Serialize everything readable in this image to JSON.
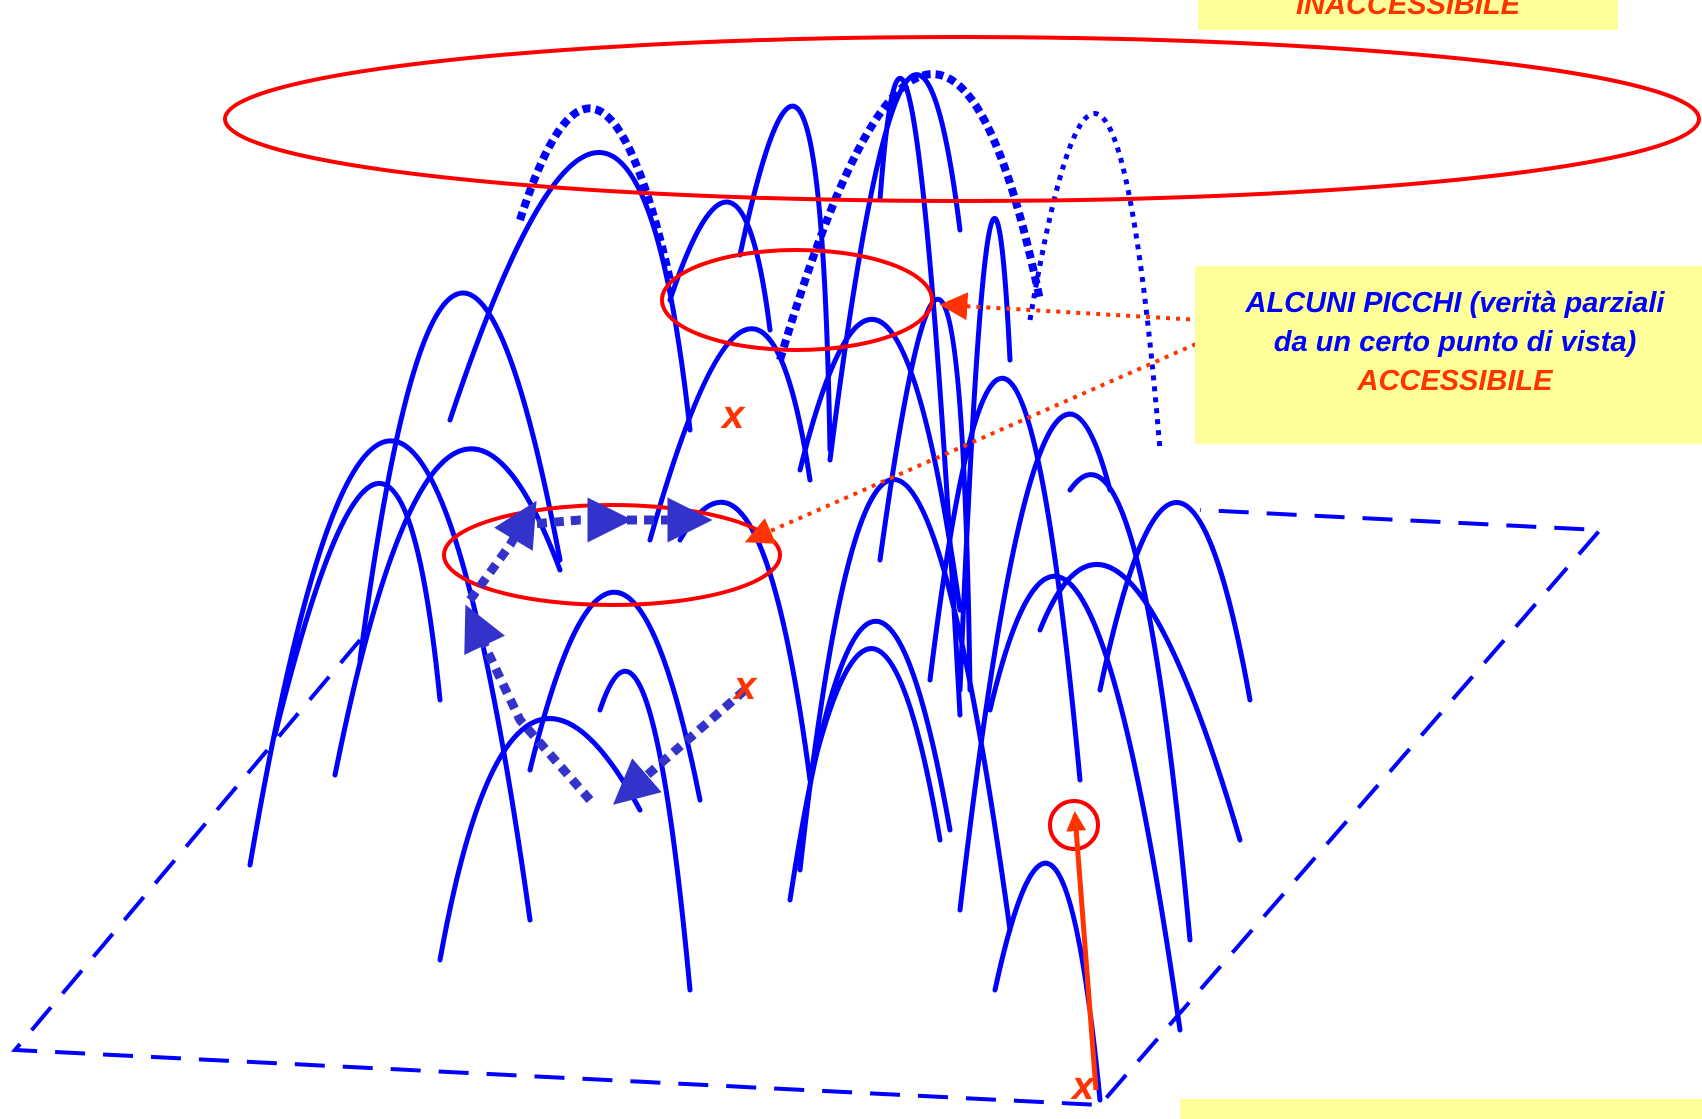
{
  "callouts": {
    "top": {
      "line1": "INACCESSIBILE"
    },
    "middle": {
      "line1": "ALCUNI PICCHI (verità parziali",
      "line2": "da un certo punto di vista)",
      "line3": "ACCESSIBILE"
    }
  },
  "markers": {
    "x1": "x",
    "x2": "x",
    "x3": "x"
  },
  "colors": {
    "curve": "#0000ff",
    "path": "#3333cc",
    "ring": "#ff0000",
    "pointer": "#ff3300",
    "callout_bg": "#ffff99"
  }
}
